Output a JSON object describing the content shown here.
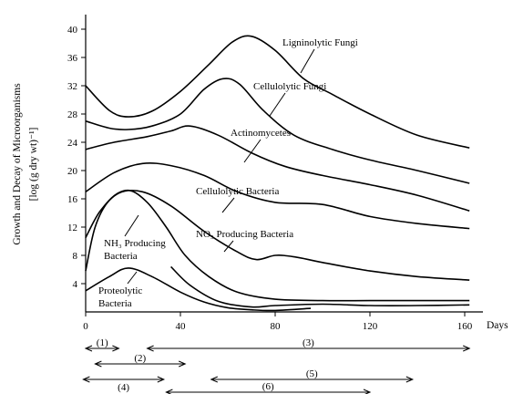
{
  "chart_data": {
    "type": "line",
    "title": "",
    "xlabel": "Days",
    "ylabel": "Growth and Decay of Microorganisms",
    "ylabel_unit": "[log (g dry wt)⁻¹]",
    "xlim": [
      0,
      165
    ],
    "ylim": [
      0,
      42
    ],
    "x_ticks": [
      0,
      40,
      80,
      120,
      160
    ],
    "y_ticks": [
      4,
      8,
      12,
      16,
      20,
      24,
      28,
      32,
      36,
      40
    ],
    "grid": false,
    "series": [
      {
        "name": "Ligninolytic Fungi",
        "x": [
          0,
          10,
          18,
          28,
          40,
          52,
          62,
          70,
          80,
          92,
          104,
          120,
          140,
          162
        ],
        "y": [
          32,
          28.5,
          27.6,
          28.4,
          31.2,
          35,
          38.2,
          39,
          37,
          33,
          30.8,
          28,
          25,
          23.2
        ]
      },
      {
        "name": "Cellulolytic Fungi",
        "x": [
          0,
          10,
          18,
          28,
          40,
          50,
          58,
          65,
          75,
          88,
          104,
          120,
          140,
          162
        ],
        "y": [
          27,
          26,
          25.8,
          26.3,
          28,
          31.5,
          33,
          32.2,
          28.5,
          25,
          23,
          21.5,
          20,
          18.2
        ]
      },
      {
        "name": "Actinomycetes",
        "x": [
          0,
          12,
          26,
          36,
          44,
          56,
          70,
          84,
          100,
          120,
          140,
          162
        ],
        "y": [
          23,
          24,
          24.8,
          25.6,
          26.3,
          25,
          22.5,
          20.6,
          19.3,
          18,
          16.5,
          14.3
        ]
      },
      {
        "name": "Cellulolytic Bacteria",
        "x": [
          0,
          12,
          24,
          36,
          50,
          64,
          80,
          100,
          120,
          140,
          162
        ],
        "y": [
          17,
          19.7,
          21,
          20.7,
          19.3,
          17,
          15.5,
          15.2,
          13.5,
          12.5,
          11.8
        ]
      },
      {
        "name": "NO₃ Producing Bacteria",
        "x": [
          0,
          6,
          14,
          24,
          36,
          50,
          64,
          72,
          80,
          88,
          100,
          120,
          140,
          162
        ],
        "y": [
          10.5,
          14.2,
          16.8,
          17,
          15,
          11.4,
          8.5,
          7.4,
          8,
          7.8,
          7,
          5.8,
          5,
          4.5
        ]
      },
      {
        "name": "NH₃ Producing Bacteria",
        "x": [
          0,
          4,
          10,
          18,
          26,
          34,
          42,
          52,
          64,
          80,
          100,
          120,
          140,
          162
        ],
        "y": [
          5.8,
          12,
          15.8,
          17.2,
          15.5,
          12,
          8,
          5,
          2.8,
          1.8,
          1.6,
          1.6,
          1.6,
          1.6
        ]
      },
      {
        "name": "Proteolytic Bacteria",
        "x": [
          0,
          10,
          18,
          28,
          40,
          50,
          60,
          70,
          80,
          95
        ],
        "y": [
          3,
          5,
          6.2,
          5,
          2.8,
          1.4,
          0.6,
          0.3,
          0.2,
          0.5
        ]
      },
      {
        "name": "",
        "x": [
          36,
          44,
          56,
          70,
          80,
          100,
          120,
          140,
          162
        ],
        "y": [
          6.4,
          3.8,
          1.5,
          0.7,
          0.9,
          1.1,
          0.9,
          0.9,
          1
        ]
      }
    ],
    "periods": [
      {
        "label": "(1)",
        "start": 0,
        "end": 14,
        "row": 1
      },
      {
        "label": "(2)",
        "start": 4,
        "end": 42,
        "row": 2
      },
      {
        "label": "(3)",
        "start": 26,
        "end": 162,
        "row": 1
      },
      {
        "label": "(4)",
        "start": -1,
        "end": 33,
        "row": 3
      },
      {
        "label": "(5)",
        "start": 53,
        "end": 138,
        "row": 3
      },
      {
        "label": "(6)",
        "start": 34,
        "end": 120,
        "row": 4
      }
    ]
  }
}
